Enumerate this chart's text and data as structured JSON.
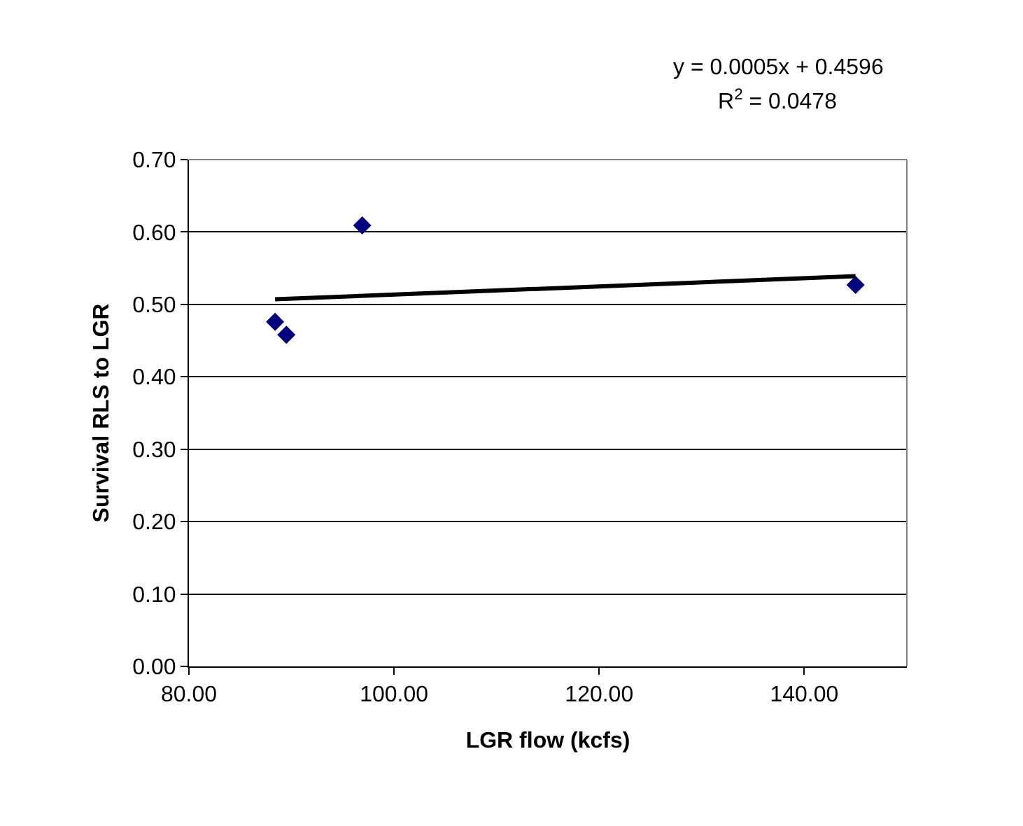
{
  "chart_data": {
    "type": "scatter",
    "xlabel": "LGR flow (kcfs)",
    "ylabel": "Survival RLS to LGR",
    "series": [
      {
        "color": "#000080",
        "marker": "diamond",
        "x": [
          88.4,
          89.5,
          96.9,
          145.0
        ],
        "values": [
          0.476,
          0.458,
          0.609,
          0.527
        ]
      },
      {
        "type": "line",
        "color": "#000000",
        "marker": "none",
        "line_style": "solid",
        "x": [
          88.4,
          145.0
        ],
        "values": [
          0.507,
          0.539
        ]
      }
    ],
    "annotations": [
      "y = 0.0005x + 0.4596",
      "R$^{2}$ = 0.0478"
    ],
    "xlim": [
      80,
      150
    ],
    "xticks": [
      {
        "value": 80,
        "label": "80.00"
      },
      {
        "value": 100,
        "label": "100.00"
      },
      {
        "value": 120,
        "label": "120.00"
      },
      {
        "value": 140,
        "label": "140.00"
      }
    ],
    "ylim": [
      0,
      0.7
    ],
    "yticks": [
      {
        "value": 0,
        "label": "0.00"
      },
      {
        "value": 0.1,
        "label": "0.10"
      },
      {
        "value": 0.2,
        "label": "0.20"
      },
      {
        "value": 0.3,
        "label": "0.30"
      },
      {
        "value": 0.4,
        "label": "0.40"
      },
      {
        "value": 0.5,
        "label": "0.50"
      },
      {
        "value": 0.6,
        "label": "0.60"
      },
      {
        "value": 0.7,
        "label": "0.70"
      }
    ],
    "grid": "y"
  }
}
